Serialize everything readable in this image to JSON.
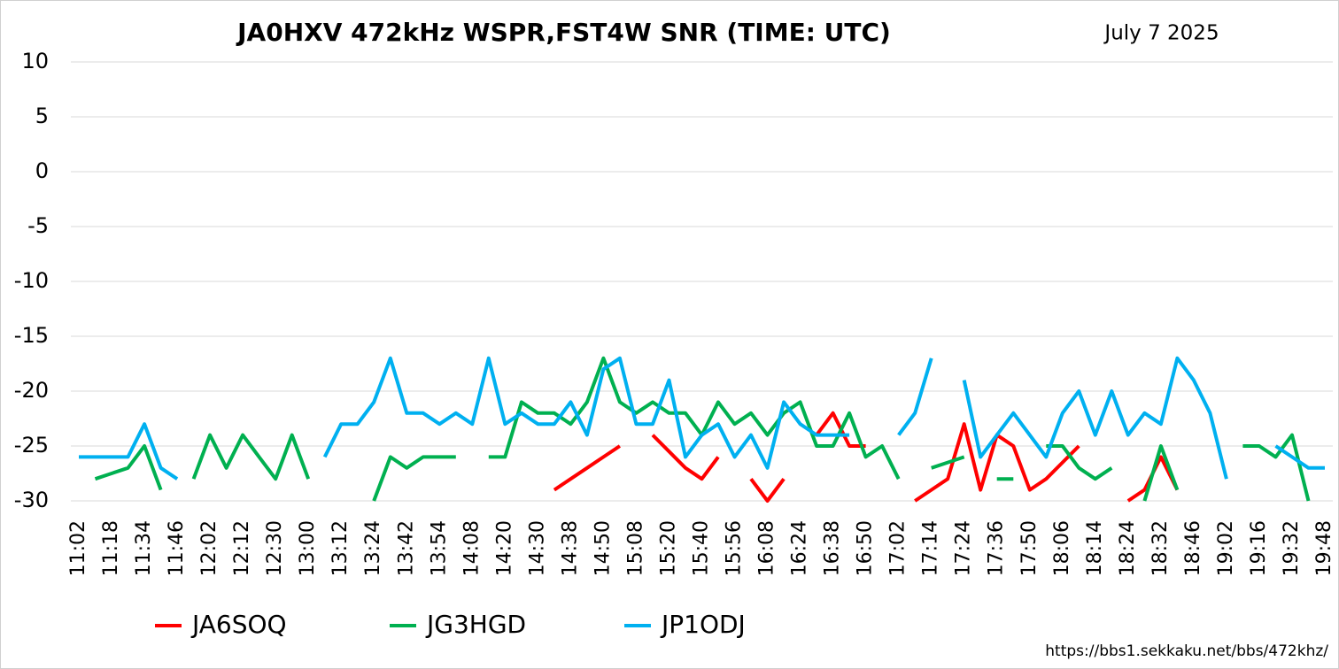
{
  "chart_data": {
    "type": "line",
    "title": "JA0HXV 472kHz WSPR,FST4W SNR (TIME: UTC)",
    "annotations": [
      "July 7 2025",
      "https://bbs1.sekkaku.net/bbs/472khz/"
    ],
    "categories": [
      "11:02",
      null,
      "11:18",
      null,
      "11:34",
      null,
      "11:46",
      null,
      "12:02",
      null,
      "12:12",
      null,
      "12:30",
      null,
      "13:00",
      null,
      "13:12",
      null,
      "13:24",
      null,
      "13:42",
      null,
      "13:54",
      null,
      "14:08",
      null,
      "14:20",
      null,
      "14:30",
      null,
      "14:38",
      null,
      "14:50",
      null,
      "15:08",
      null,
      "15:20",
      null,
      "15:40",
      null,
      "15:56",
      null,
      "16:08",
      null,
      "16:24",
      null,
      "16:38",
      null,
      "16:50",
      null,
      "17:02",
      null,
      "17:14",
      null,
      "17:24",
      null,
      "17:36",
      null,
      "17:50",
      null,
      "18:06",
      null,
      "18:14",
      null,
      "18:24",
      null,
      "18:32",
      null,
      "18:46",
      null,
      "19:02",
      null,
      "19:16",
      null,
      "19:32",
      null,
      "19:48"
    ],
    "series": [
      {
        "name": "JA6SOQ",
        "color": "#ff0000",
        "values": [
          null,
          null,
          null,
          null,
          null,
          null,
          null,
          null,
          null,
          null,
          null,
          null,
          null,
          null,
          null,
          null,
          null,
          null,
          null,
          null,
          null,
          null,
          null,
          null,
          null,
          null,
          null,
          null,
          null,
          -29,
          -28,
          -27,
          -26,
          -25,
          null,
          -24,
          -25.5,
          -27,
          -28,
          -26,
          null,
          -28,
          -30,
          -28,
          null,
          -24,
          -22,
          -25,
          -25,
          null,
          null,
          -30,
          -29,
          -28,
          -23,
          -29,
          -24,
          -25,
          -29,
          -28,
          -26.5,
          -25,
          null,
          null,
          -30,
          -29,
          -26,
          -29,
          null,
          null,
          null,
          null,
          null,
          null,
          null,
          null,
          null
        ]
      },
      {
        "name": "JG3HGD",
        "color": "#00b050",
        "values": [
          null,
          -28,
          -27.5,
          -27,
          -25,
          -29,
          null,
          -28,
          -24,
          -27,
          -24,
          -26,
          -28,
          -24,
          -28,
          null,
          null,
          null,
          -30,
          -26,
          -27,
          -26,
          -26,
          -26,
          null,
          -26,
          -26,
          -21,
          -22,
          -22,
          -23,
          -21,
          -17,
          -21,
          -22,
          -21,
          -22,
          -22,
          -24,
          -21,
          -23,
          -22,
          -24,
          -22,
          -21,
          -25,
          -25,
          -22,
          -26,
          -25,
          -28,
          null,
          -27,
          -26.5,
          -26,
          null,
          -28,
          -28,
          null,
          -25,
          -25,
          -27,
          -28,
          -27,
          null,
          -30,
          -25,
          -29,
          null,
          null,
          null,
          -25,
          -25,
          -26,
          -24,
          -30,
          null
        ]
      },
      {
        "name": "JP1ODJ",
        "color": "#00b0f0",
        "values": [
          -26,
          -26,
          -26,
          -26,
          -23,
          -27,
          -28,
          null,
          null,
          null,
          null,
          null,
          null,
          null,
          null,
          -26,
          -23,
          -23,
          -21,
          -17,
          -22,
          -22,
          -23,
          -22,
          -23,
          -17,
          -23,
          -22,
          -23,
          -23,
          -21,
          -24,
          -18,
          -17,
          -23,
          -23,
          -19,
          -26,
          -24,
          -23,
          -26,
          -24,
          -27,
          -21,
          -23,
          -24,
          -24,
          -24,
          null,
          null,
          -24,
          -22,
          -17,
          null,
          -19,
          -26,
          -24,
          -22,
          -24,
          -26,
          -22,
          -20,
          -24,
          -20,
          -24,
          -22,
          -23,
          -17,
          -19,
          -22,
          -28,
          null,
          null,
          -25,
          -26,
          -27,
          -27
        ]
      }
    ],
    "ylim": [
      -30,
      10
    ],
    "yticks": [
      -30,
      -25,
      -20,
      -15,
      -10,
      -5,
      0,
      5,
      10
    ],
    "grid": true
  }
}
